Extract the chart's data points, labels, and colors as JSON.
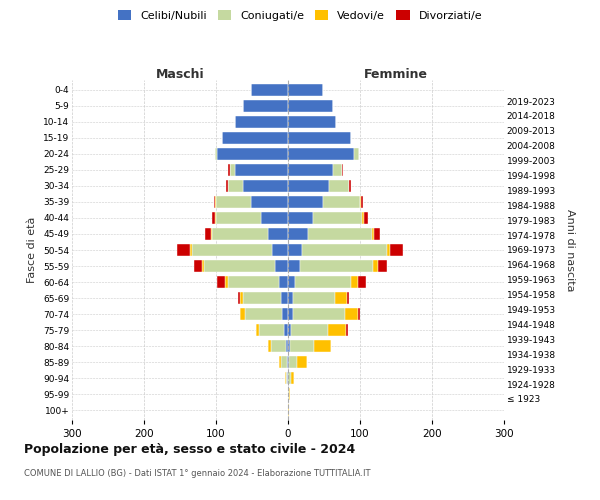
{
  "age_groups": [
    "100+",
    "95-99",
    "90-94",
    "85-89",
    "80-84",
    "75-79",
    "70-74",
    "65-69",
    "60-64",
    "55-59",
    "50-54",
    "45-49",
    "40-44",
    "35-39",
    "30-34",
    "25-29",
    "20-24",
    "15-19",
    "10-14",
    "5-9",
    "0-4"
  ],
  "birth_years": [
    "≤ 1923",
    "1924-1928",
    "1929-1933",
    "1934-1938",
    "1939-1943",
    "1944-1948",
    "1949-1953",
    "1954-1958",
    "1959-1963",
    "1964-1968",
    "1969-1973",
    "1974-1978",
    "1979-1983",
    "1984-1988",
    "1989-1993",
    "1994-1998",
    "1999-2003",
    "2004-2008",
    "2009-2013",
    "2014-2018",
    "2019-2023"
  ],
  "maschi_celibi": [
    0,
    0,
    1,
    2,
    3,
    5,
    8,
    10,
    12,
    18,
    22,
    28,
    38,
    52,
    62,
    73,
    98,
    92,
    73,
    62,
    52
  ],
  "maschi_coniugati": [
    0,
    0,
    2,
    8,
    20,
    35,
    52,
    52,
    72,
    98,
    112,
    78,
    62,
    48,
    22,
    8,
    3,
    0,
    0,
    0,
    0
  ],
  "maschi_vedovi": [
    0,
    0,
    1,
    3,
    5,
    5,
    7,
    4,
    3,
    3,
    2,
    1,
    1,
    1,
    0,
    0,
    0,
    0,
    0,
    0,
    0
  ],
  "maschi_divorziati": [
    0,
    0,
    0,
    0,
    0,
    0,
    0,
    3,
    12,
    12,
    18,
    8,
    5,
    2,
    2,
    2,
    0,
    0,
    0,
    0,
    0
  ],
  "femmine_celibi": [
    0,
    0,
    0,
    2,
    3,
    4,
    7,
    7,
    10,
    16,
    20,
    28,
    35,
    48,
    57,
    62,
    92,
    87,
    67,
    62,
    48
  ],
  "femmine_coniugati": [
    0,
    1,
    4,
    10,
    33,
    52,
    72,
    58,
    78,
    102,
    118,
    88,
    68,
    52,
    28,
    13,
    6,
    0,
    0,
    0,
    0
  ],
  "femmine_vedovi": [
    1,
    2,
    5,
    15,
    24,
    24,
    18,
    17,
    9,
    7,
    4,
    3,
    2,
    1,
    0,
    0,
    0,
    0,
    0,
    0,
    0
  ],
  "femmine_divorziati": [
    0,
    0,
    0,
    0,
    0,
    3,
    3,
    3,
    12,
    12,
    18,
    9,
    6,
    3,
    2,
    1,
    0,
    0,
    0,
    0,
    0
  ],
  "color_celibi": "#4472c4",
  "color_coniugati": "#c5d9a0",
  "color_vedovi": "#ffc000",
  "color_divorziati": "#cc0000",
  "title": "Popolazione per età, sesso e stato civile - 2024",
  "subtitle": "COMUNE DI LALLIO (BG) - Dati ISTAT 1° gennaio 2024 - Elaborazione TUTTITALIA.IT",
  "xlabel_left": "Maschi",
  "xlabel_right": "Femmine",
  "ylabel_left": "Fasce di età",
  "ylabel_right": "Anni di nascita",
  "legend_labels": [
    "Celibi/Nubili",
    "Coniugati/e",
    "Vedovi/e",
    "Divorziati/e"
  ],
  "xlim": 300,
  "background_color": "#ffffff",
  "grid_color": "#cccccc"
}
